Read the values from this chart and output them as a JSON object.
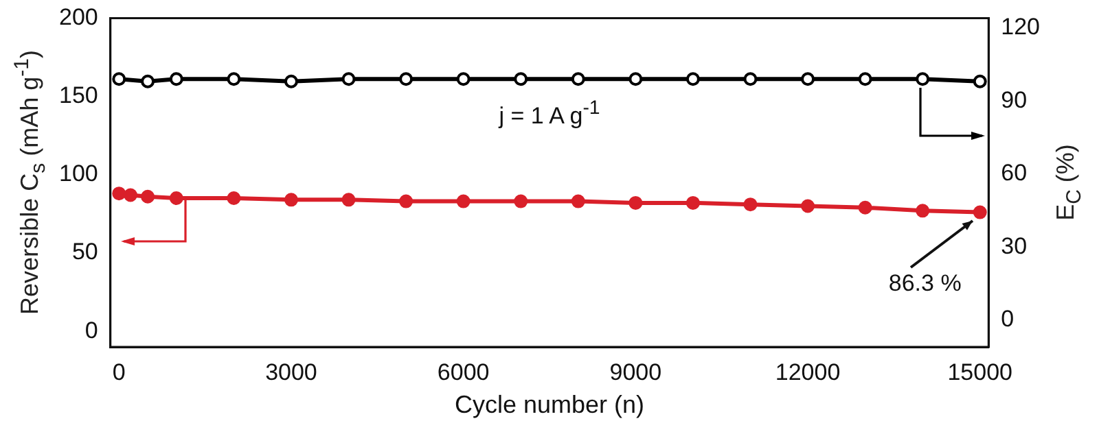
{
  "chart_data": {
    "type": "line",
    "xlabel": "Cycle number (n)",
    "ylabel": "Reversible C$_{s}$ (mAh g$^{-1}$)",
    "y2label": "E$_{C}$ (%)",
    "xlim": [
      -150,
      15150
    ],
    "xticks": [
      0,
      3000,
      6000,
      9000,
      12000,
      15000
    ],
    "ylim": [
      -10,
      200
    ],
    "yticks": [
      0,
      50,
      100,
      150,
      200
    ],
    "y2lim": [
      -11,
      124
    ],
    "y2ticks": [
      0,
      30,
      60,
      90,
      120
    ],
    "marker": "circle",
    "grid": false,
    "legend": false,
    "series": [
      {
        "color": "#000000",
        "x": [
          0,
          500,
          1000,
          2000,
          3000,
          4000,
          5000,
          6000,
          7000,
          8000,
          9000,
          10000,
          11000,
          12000,
          13000,
          14000,
          15000
        ],
        "values": [
          99,
          98,
          99,
          99,
          98,
          99,
          99,
          99,
          99,
          99,
          99,
          99,
          99,
          99,
          99,
          99,
          98
        ],
        "axis": "y2"
      },
      {
        "color": "#d9202a",
        "x": [
          0,
          200,
          500,
          1000,
          2000,
          3000,
          4000,
          5000,
          6000,
          7000,
          8000,
          9000,
          10000,
          11000,
          12000,
          13000,
          14000,
          15000
        ],
        "values": [
          88,
          87,
          86,
          85,
          85,
          84,
          84,
          83,
          83,
          83,
          83,
          82,
          82,
          81,
          80,
          79,
          77,
          76
        ]
      }
    ],
    "annotations": [
      "j = 1 A g$^{-1}$",
      {
        "text": "86.3 %",
        "x": 15000,
        "y": 76
      }
    ]
  }
}
